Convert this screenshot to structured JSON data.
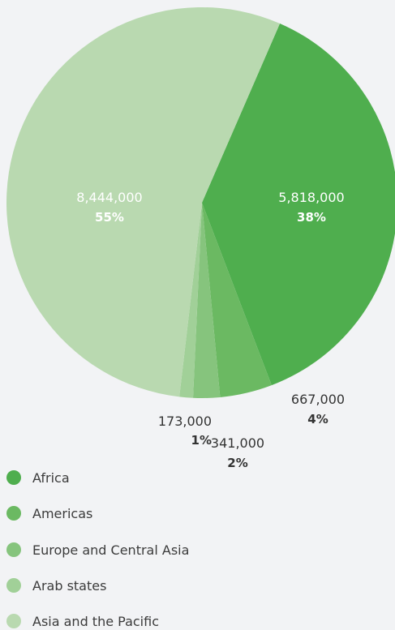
{
  "chart_data": {
    "type": "pie",
    "categories": [
      "Africa",
      "Americas",
      "Europe and Central Asia",
      "Arab states",
      "Asia and the Pacific"
    ],
    "values": [
      5818000,
      667000,
      341000,
      173000,
      8444000
    ],
    "value_labels": [
      "5,818,000",
      "667,000",
      "341,000",
      "173,000",
      "8,444,000"
    ],
    "percent_labels": [
      "38%",
      "4%",
      "2%",
      "1%",
      "55%"
    ],
    "colors": [
      "#4fae4e",
      "#6bb962",
      "#86c47d",
      "#a1d098",
      "#b9d9b0"
    ],
    "legend_position": "bottom-left"
  }
}
